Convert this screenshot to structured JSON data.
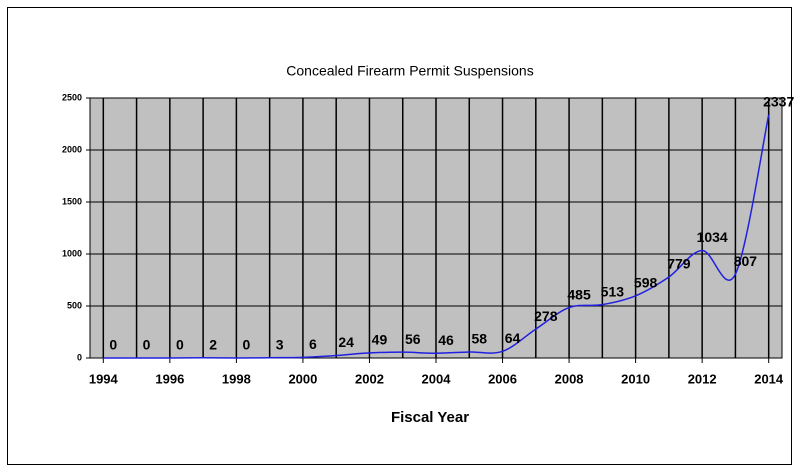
{
  "chart_data": {
    "type": "line",
    "title": "Concealed Firearm Permit Suspensions",
    "x_label": "Fiscal Year",
    "x": [
      1994,
      1995,
      1996,
      1997,
      1998,
      1999,
      2000,
      2001,
      2002,
      2003,
      2004,
      2005,
      2006,
      2007,
      2008,
      2009,
      2010,
      2011,
      2012,
      2013,
      2014
    ],
    "series": [
      {
        "name": "Suspensions",
        "color": "#2020e0",
        "values": [
          0,
          0,
          0,
          2,
          0,
          3,
          6,
          24,
          49,
          56,
          46,
          58,
          64,
          278,
          485,
          513,
          598,
          779,
          1034,
          807,
          2337
        ]
      }
    ],
    "xlim": [
      1993.6,
      2014.4
    ],
    "xticks": [
      1994,
      1996,
      1998,
      2000,
      2002,
      2004,
      2006,
      2008,
      2010,
      2012,
      2014
    ],
    "ylim": [
      0,
      2500
    ],
    "yticks": [
      0,
      500,
      1000,
      1500,
      2000,
      2500
    ],
    "grid": true,
    "smooth": true,
    "plot_background": "#c0c0c0"
  }
}
